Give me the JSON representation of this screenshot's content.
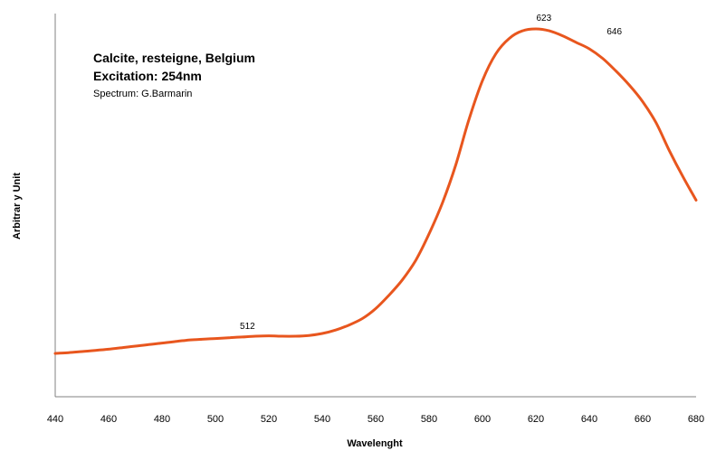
{
  "chart_data": {
    "type": "line",
    "title": "",
    "xlabel": "Wavelenght",
    "ylabel": "Arbitrar y Unit",
    "xlim": [
      440,
      680
    ],
    "ylim": [
      0,
      100
    ],
    "xticks": [
      "440",
      "460",
      "480",
      "500",
      "520",
      "540",
      "560",
      "580",
      "600",
      "620",
      "640",
      "660",
      "680"
    ],
    "yticks_shown": false,
    "grid": false,
    "legend": "none",
    "annotations": {
      "line1": "Calcite, resteigne, Belgium",
      "line2": "Excitation: 254nm",
      "line3": "Spectrum: G.Barmarin"
    },
    "peak_labels": [
      {
        "text": "512",
        "x": 512,
        "y": 15.6
      },
      {
        "text": "623",
        "x": 623,
        "y": 96.0
      },
      {
        "text": "646",
        "x": 646,
        "y": 92.5
      }
    ],
    "series": [
      {
        "color": "#E8561E",
        "x": [
          440,
          445,
          450,
          455,
          460,
          465,
          470,
          475,
          480,
          485,
          490,
          495,
          500,
          505,
          510,
          515,
          520,
          525,
          530,
          535,
          540,
          545,
          550,
          555,
          560,
          565,
          570,
          575,
          580,
          585,
          590,
          595,
          600,
          605,
          610,
          615,
          620,
          625,
          630,
          635,
          640,
          645,
          650,
          655,
          660,
          665,
          670,
          675,
          680
        ],
        "values": [
          11.3,
          11.5,
          11.8,
          12.1,
          12.4,
          12.8,
          13.2,
          13.6,
          14.0,
          14.4,
          14.8,
          15.0,
          15.2,
          15.4,
          15.6,
          15.8,
          15.9,
          15.8,
          15.8,
          16.0,
          16.5,
          17.4,
          18.7,
          20.4,
          23.0,
          26.5,
          30.5,
          35.6,
          42.5,
          50.6,
          60.5,
          72.5,
          82.5,
          89.5,
          93.5,
          95.5,
          96.0,
          95.5,
          94.2,
          92.5,
          90.8,
          88.3,
          85.0,
          81.3,
          77.0,
          71.5,
          64.2,
          57.5,
          51.3
        ]
      }
    ]
  }
}
